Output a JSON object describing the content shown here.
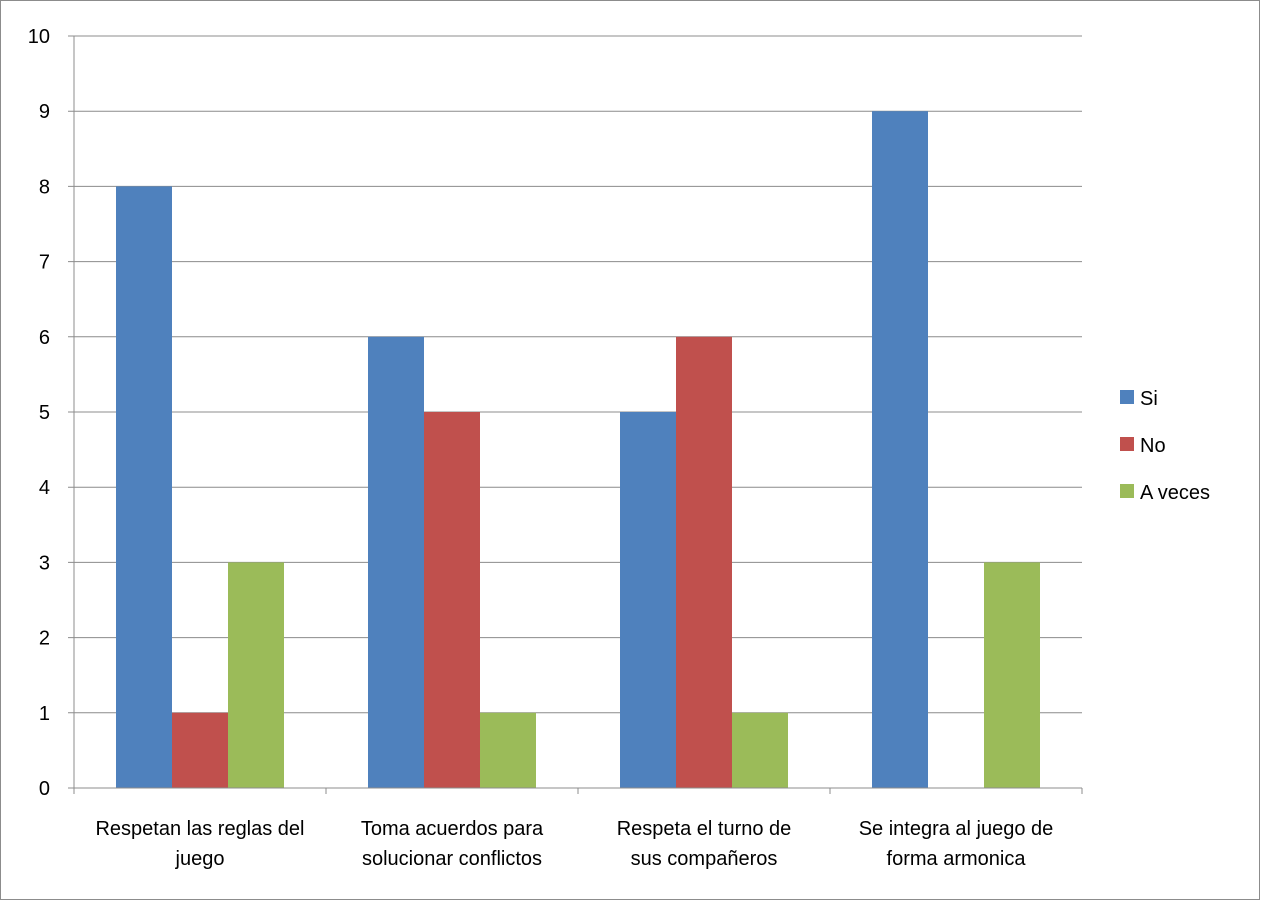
{
  "chart_data": {
    "type": "bar",
    "categories": [
      [
        "Respetan las reglas del",
        "juego"
      ],
      [
        "Toma acuerdos para",
        "solucionar conflictos"
      ],
      [
        "Respeta el turno de",
        "sus compañeros"
      ],
      [
        "Se integra al juego de",
        "forma armonica"
      ]
    ],
    "series": [
      {
        "name": "Si",
        "color": "#4f81bd",
        "values": [
          8,
          6,
          5,
          9
        ]
      },
      {
        "name": "No",
        "color": "#c0504d",
        "values": [
          1,
          5,
          6,
          0
        ]
      },
      {
        "name": "A veces",
        "color": "#9bbb59",
        "values": [
          3,
          1,
          1,
          3
        ]
      }
    ],
    "title": "",
    "xlabel": "",
    "ylabel": "",
    "ylim": [
      0,
      10
    ],
    "yticks": [
      "0",
      "1",
      "2",
      "3",
      "4",
      "5",
      "6",
      "7",
      "8",
      "9",
      "10"
    ],
    "grid": true,
    "legend_position": "right"
  }
}
